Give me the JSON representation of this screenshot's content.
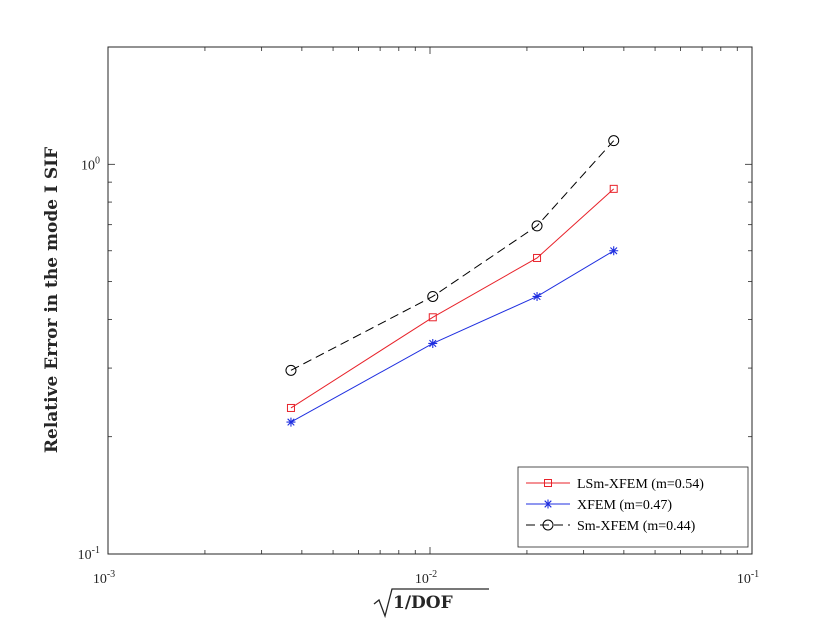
{
  "chart_data": {
    "type": "line",
    "title": "",
    "xlabel": "1/DOF",
    "ylabel": "Relative Error in the mode I SIF",
    "xscale": "log",
    "yscale": "log",
    "xlim": [
      0.001,
      0.1
    ],
    "ylim": [
      0.1,
      2.0
    ],
    "xticks": [
      {
        "base": "10",
        "exp": "-3"
      },
      {
        "base": "10",
        "exp": "-2"
      },
      {
        "base": "10",
        "exp": "-1"
      }
    ],
    "yticks": [
      {
        "base": "10",
        "exp": "-1"
      },
      {
        "base": "10",
        "exp": "0"
      }
    ],
    "grid": false,
    "legend_position": "bottom-right",
    "series": [
      {
        "name": "LSm-XFEM (m=0.54)",
        "color": "#e8222a",
        "marker": "square",
        "dash": "solid",
        "x": [
          0.0037,
          0.0102,
          0.0215,
          0.0372
        ],
        "y": [
          0.237,
          0.405,
          0.575,
          0.865
        ]
      },
      {
        "name": "XFEM (m=0.47)",
        "color": "#1f2fe0",
        "marker": "asterisk",
        "dash": "solid",
        "x": [
          0.0037,
          0.0102,
          0.0215,
          0.0372
        ],
        "y": [
          0.218,
          0.347,
          0.458,
          0.6
        ]
      },
      {
        "name": "Sm-XFEM (m=0.44)",
        "color": "#000000",
        "marker": "circle",
        "dash": "dashed",
        "x": [
          0.0037,
          0.0102,
          0.0215,
          0.0372
        ],
        "y": [
          0.296,
          0.458,
          0.695,
          1.15
        ]
      }
    ]
  }
}
